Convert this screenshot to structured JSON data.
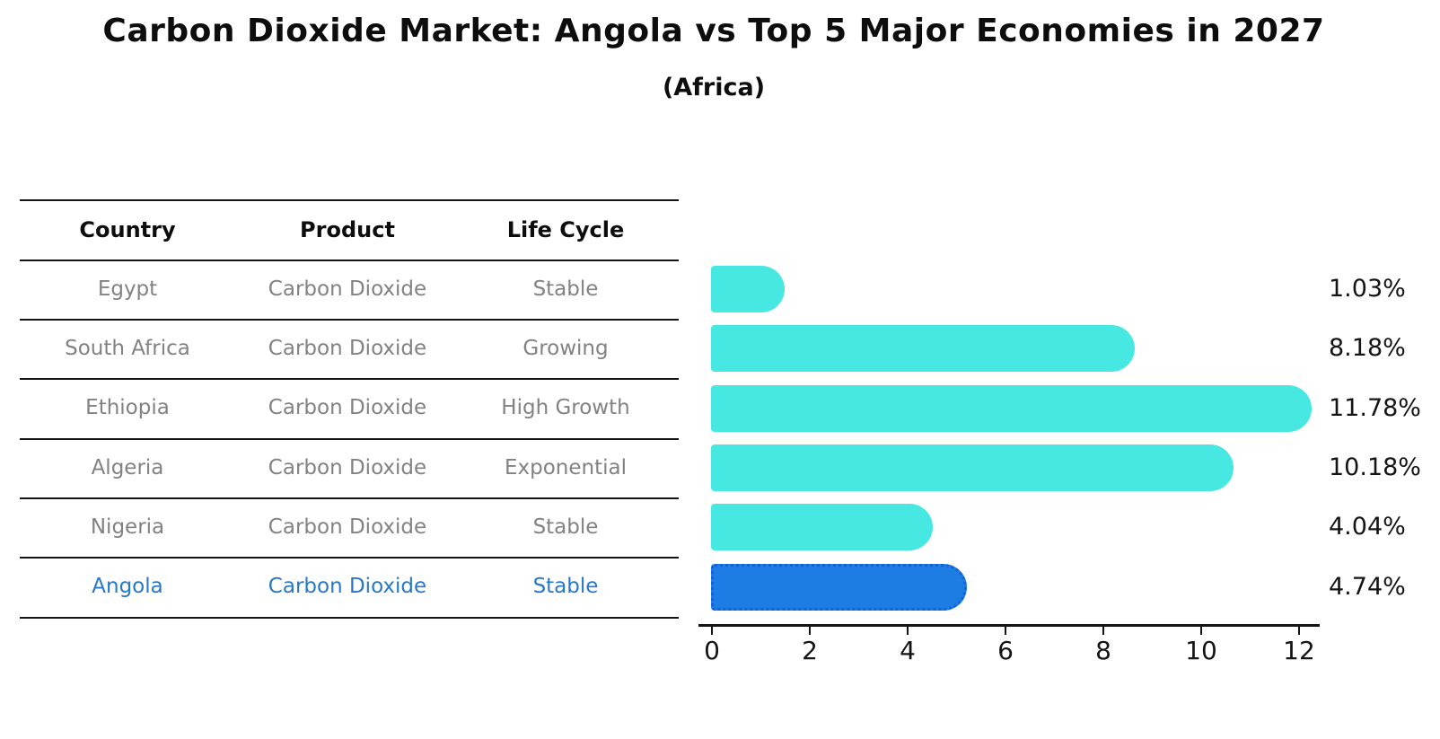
{
  "title": "Carbon Dioxide Market: Angola vs Top 5 Major Economies in 2027",
  "subtitle": "(Africa)",
  "table": {
    "headers": [
      "Country",
      "Product",
      "Life Cycle"
    ],
    "rows": [
      {
        "country": "Egypt",
        "product": "Carbon Dioxide",
        "life_cycle": "Stable"
      },
      {
        "country": "South Africa",
        "product": "Carbon Dioxide",
        "life_cycle": "Growing"
      },
      {
        "country": "Ethiopia",
        "product": "Carbon Dioxide",
        "life_cycle": "High Growth"
      },
      {
        "country": "Algeria",
        "product": "Carbon Dioxide",
        "life_cycle": "Exponential"
      },
      {
        "country": "Nigeria",
        "product": "Carbon Dioxide",
        "life_cycle": "Stable"
      },
      {
        "country": "Angola",
        "product": "Carbon Dioxide",
        "life_cycle": "Stable"
      }
    ]
  },
  "chart_data": {
    "type": "bar",
    "orientation": "horizontal",
    "title": "Carbon Dioxide Market: Angola vs Top 5 Major Economies in 2027",
    "subtitle": "(Africa)",
    "categories": [
      "Egypt",
      "South Africa",
      "Ethiopia",
      "Algeria",
      "Nigeria",
      "Angola"
    ],
    "values": [
      1.03,
      8.18,
      11.78,
      10.18,
      4.04,
      4.74
    ],
    "value_labels": [
      "1.03%",
      "8.18%",
      "11.78%",
      "10.18%",
      "4.04%",
      "4.74%"
    ],
    "xlabel": "",
    "ylabel": "",
    "xlim": [
      0,
      12
    ],
    "xticks": [
      "0",
      "2",
      "4",
      "6",
      "8",
      "10",
      "12"
    ],
    "grid": false,
    "highlight_index": 5,
    "bar_color": "#46E8E1",
    "highlight_bar_color": "#1E7CE5",
    "highlight_text_color": "#2878C8"
  }
}
